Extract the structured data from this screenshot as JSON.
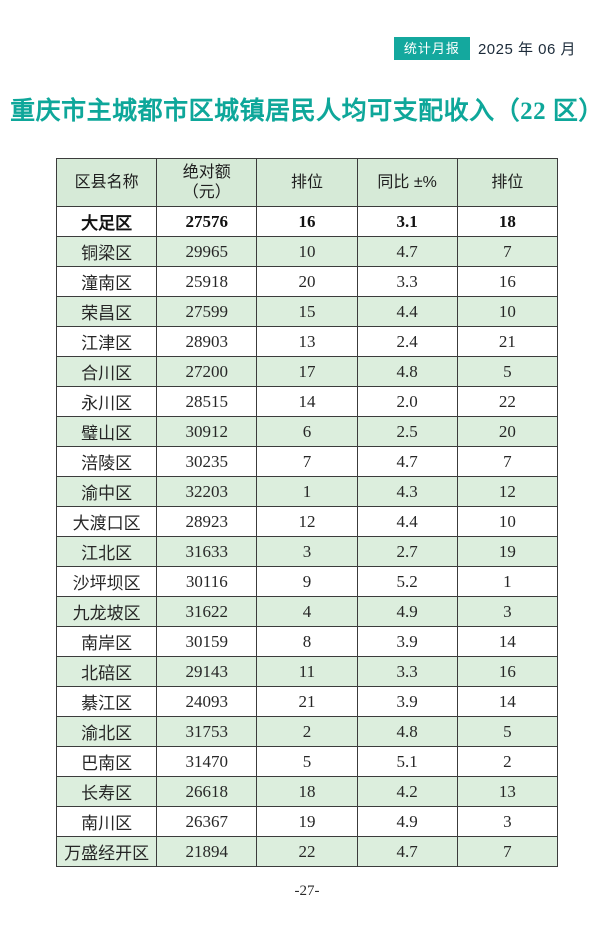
{
  "page": {
    "badge_label": "统计月报",
    "issue_date": "2025 年 06 月",
    "title": "重庆市主城都市区城镇居民人均可支配收入（22 区）",
    "page_number": "-27-"
  },
  "colors": {
    "accent_teal": "#14a89e",
    "title_teal": "#0ea79a",
    "header_row_green": "#d6ead7",
    "alt_row_green": "#dceedd",
    "border": "#3c3c3c"
  },
  "table": {
    "columns": [
      "区县名称",
      "绝对额\n（元）",
      "排位",
      "同比 ±%",
      "排位"
    ],
    "emphasized_row_index": 0,
    "rows": [
      [
        "大足区",
        "27576",
        "16",
        "3.1",
        "18"
      ],
      [
        "铜梁区",
        "29965",
        "10",
        "4.7",
        "7"
      ],
      [
        "潼南区",
        "25918",
        "20",
        "3.3",
        "16"
      ],
      [
        "荣昌区",
        "27599",
        "15",
        "4.4",
        "10"
      ],
      [
        "江津区",
        "28903",
        "13",
        "2.4",
        "21"
      ],
      [
        "合川区",
        "27200",
        "17",
        "4.8",
        "5"
      ],
      [
        "永川区",
        "28515",
        "14",
        "2.0",
        "22"
      ],
      [
        "璧山区",
        "30912",
        "6",
        "2.5",
        "20"
      ],
      [
        "涪陵区",
        "30235",
        "7",
        "4.7",
        "7"
      ],
      [
        "渝中区",
        "32203",
        "1",
        "4.3",
        "12"
      ],
      [
        "大渡口区",
        "28923",
        "12",
        "4.4",
        "10"
      ],
      [
        "江北区",
        "31633",
        "3",
        "2.7",
        "19"
      ],
      [
        "沙坪坝区",
        "30116",
        "9",
        "5.2",
        "1"
      ],
      [
        "九龙坡区",
        "31622",
        "4",
        "4.9",
        "3"
      ],
      [
        "南岸区",
        "30159",
        "8",
        "3.9",
        "14"
      ],
      [
        "北碚区",
        "29143",
        "11",
        "3.3",
        "16"
      ],
      [
        "綦江区",
        "24093",
        "21",
        "3.9",
        "14"
      ],
      [
        "渝北区",
        "31753",
        "2",
        "4.8",
        "5"
      ],
      [
        "巴南区",
        "31470",
        "5",
        "5.1",
        "2"
      ],
      [
        "长寿区",
        "26618",
        "18",
        "4.2",
        "13"
      ],
      [
        "南川区",
        "26367",
        "19",
        "4.9",
        "3"
      ],
      [
        "万盛经开区",
        "21894",
        "22",
        "4.7",
        "7"
      ]
    ]
  }
}
